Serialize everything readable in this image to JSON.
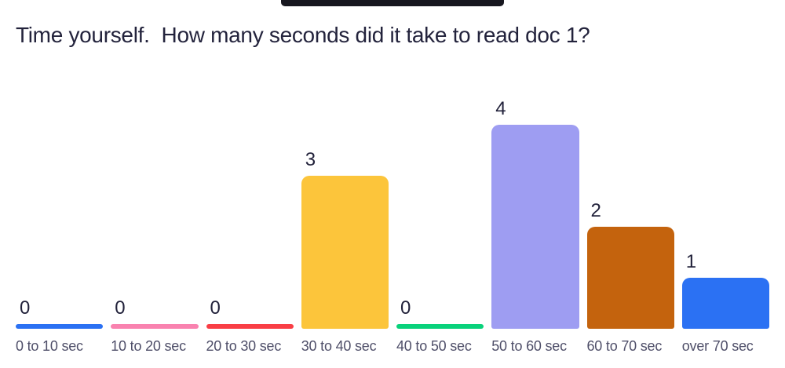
{
  "top_bar": {
    "color": "#17171f"
  },
  "title": "Time yourself.  How many seconds did it take to read doc 1?",
  "chart_data": {
    "type": "bar",
    "title": "Time yourself.  How many seconds did it take to read doc 1?",
    "orientation": "vertical",
    "categories": [
      "0 to 10 sec",
      "10 to 20 sec",
      "20 to 30 sec",
      "30 to 40 sec",
      "40 to 50 sec",
      "50 to 60 sec",
      "60 to 70 sec",
      "over 70 sec"
    ],
    "values": [
      0,
      0,
      0,
      3,
      0,
      4,
      2,
      1
    ],
    "bar_colors": [
      "#2b71f3",
      "#f982af",
      "#f93e45",
      "#fcc53b",
      "#09d27b",
      "#9e9df2",
      "#c4630d",
      "#2b71f3"
    ],
    "value_label_position": "above-bar-left",
    "xlabel": "",
    "ylabel": "",
    "ylim": [
      0,
      4
    ],
    "gridlines": false,
    "legend": false,
    "axis_lines": false
  },
  "colors": {
    "background": "#ffffff",
    "title_text": "#23233c",
    "count_text": "#21213a",
    "label_text": "#4f4f69"
  }
}
